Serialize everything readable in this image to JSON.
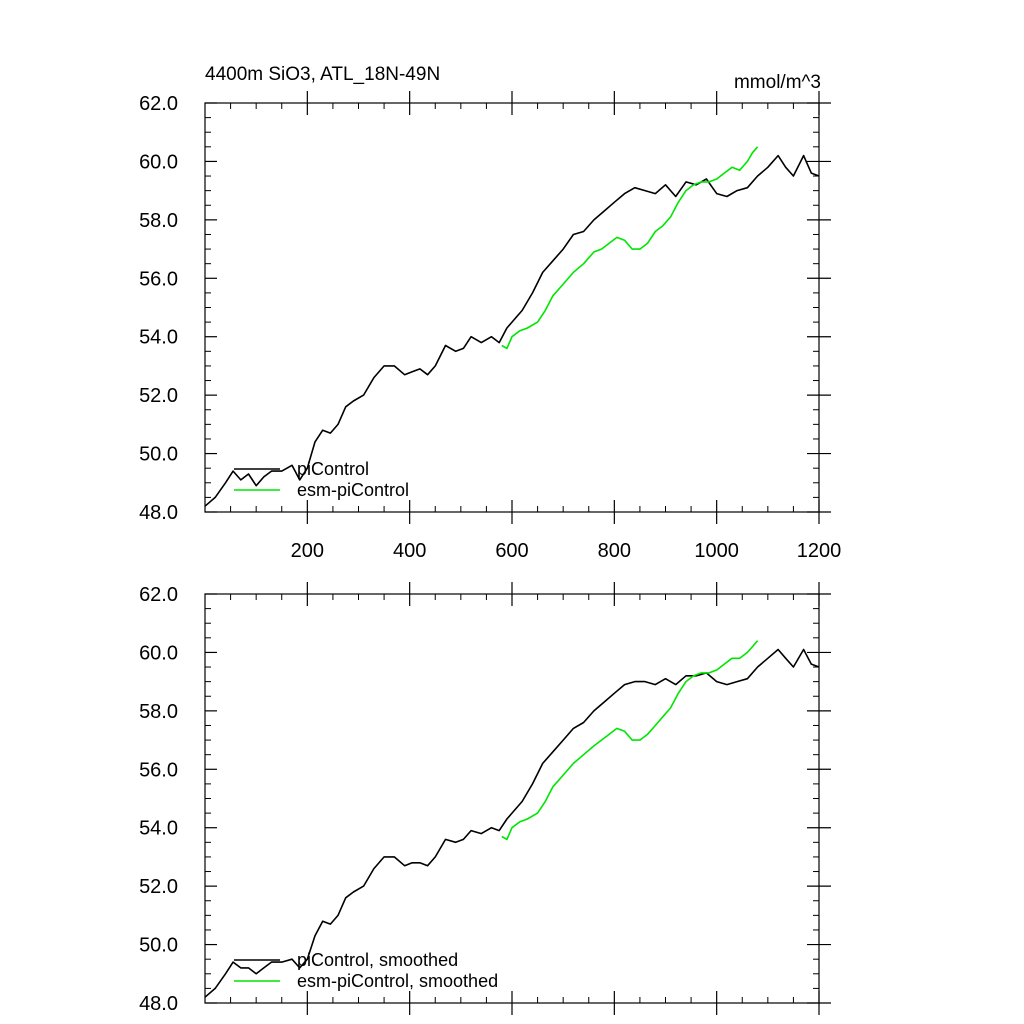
{
  "chart_data": [
    {
      "type": "line",
      "title": "4400m SiO3, ATL_18N-49N",
      "units": "mmol/m^3",
      "xlabel": "",
      "ylabel": "",
      "xlim": [
        0,
        1200
      ],
      "ylim": [
        48.0,
        62.0
      ],
      "xticks": [
        200,
        400,
        600,
        800,
        1000,
        1200
      ],
      "xtick_labels": [
        "200",
        "400",
        "600",
        "800",
        "1000",
        "1200"
      ],
      "yticks": [
        48.0,
        50.0,
        52.0,
        54.0,
        56.0,
        58.0,
        60.0,
        62.0
      ],
      "ytick_labels": [
        "48.0",
        "50.0",
        "52.0",
        "54.0",
        "56.0",
        "58.0",
        "60.0",
        "62.0"
      ],
      "legend": [
        "piControl",
        "esm-piControl"
      ],
      "legend_position": "bottom-left",
      "series": [
        {
          "name": "piControl",
          "color": "#000000",
          "x": [
            0,
            20,
            40,
            55,
            70,
            85,
            100,
            115,
            130,
            150,
            170,
            185,
            200,
            215,
            230,
            245,
            260,
            275,
            290,
            310,
            330,
            350,
            370,
            390,
            405,
            420,
            435,
            450,
            470,
            490,
            505,
            520,
            540,
            560,
            575,
            590,
            600,
            620,
            640,
            660,
            680,
            700,
            720,
            740,
            760,
            780,
            800,
            820,
            840,
            860,
            880,
            900,
            920,
            940,
            960,
            980,
            1000,
            1020,
            1040,
            1060,
            1080,
            1100,
            1120,
            1135,
            1150,
            1170,
            1185,
            1200
          ],
          "y": [
            48.2,
            48.5,
            49.0,
            49.4,
            49.1,
            49.3,
            48.9,
            49.2,
            49.4,
            49.4,
            49.6,
            49.1,
            49.5,
            50.4,
            50.8,
            50.7,
            51.0,
            51.6,
            51.8,
            52.0,
            52.6,
            53.0,
            53.0,
            52.7,
            52.8,
            52.9,
            52.7,
            53.0,
            53.7,
            53.5,
            53.6,
            54.0,
            53.8,
            54.0,
            53.8,
            54.3,
            54.5,
            54.9,
            55.5,
            56.2,
            56.6,
            57.0,
            57.5,
            57.6,
            58.0,
            58.3,
            58.6,
            58.9,
            59.1,
            59.0,
            58.9,
            59.2,
            58.8,
            59.3,
            59.2,
            59.4,
            58.9,
            58.8,
            59.0,
            59.1,
            59.5,
            59.8,
            60.2,
            59.8,
            59.5,
            60.2,
            59.6,
            59.5
          ]
        },
        {
          "name": "esm-piControl",
          "color": "#00e600",
          "x": [
            580,
            590,
            600,
            615,
            630,
            650,
            665,
            680,
            700,
            720,
            740,
            760,
            775,
            790,
            805,
            820,
            835,
            850,
            865,
            880,
            895,
            910,
            925,
            940,
            955,
            970,
            985,
            1000,
            1015,
            1030,
            1045,
            1060,
            1070,
            1080
          ],
          "y": [
            53.7,
            53.6,
            54.0,
            54.2,
            54.3,
            54.5,
            54.9,
            55.4,
            55.8,
            56.2,
            56.5,
            56.9,
            57.0,
            57.2,
            57.4,
            57.3,
            57.0,
            57.0,
            57.2,
            57.6,
            57.8,
            58.1,
            58.6,
            59.0,
            59.2,
            59.3,
            59.3,
            59.4,
            59.6,
            59.8,
            59.7,
            60.0,
            60.3,
            60.5
          ]
        }
      ]
    },
    {
      "type": "line",
      "title": "",
      "units": "",
      "xlabel": "",
      "ylabel": "",
      "xlim": [
        0,
        1200
      ],
      "ylim": [
        48.0,
        62.0
      ],
      "xticks": [
        200,
        400,
        600,
        800,
        1000,
        1200
      ],
      "xtick_labels": [],
      "yticks": [
        48.0,
        50.0,
        52.0,
        54.0,
        56.0,
        58.0,
        60.0,
        62.0
      ],
      "ytick_labels": [
        "48.0",
        "50.0",
        "52.0",
        "54.0",
        "56.0",
        "58.0",
        "60.0",
        "62.0"
      ],
      "legend": [
        "piControl, smoothed",
        "esm-piControl, smoothed"
      ],
      "legend_position": "bottom-left",
      "series": [
        {
          "name": "piControl, smoothed",
          "color": "#000000",
          "x": [
            0,
            20,
            40,
            55,
            70,
            85,
            100,
            115,
            130,
            150,
            170,
            185,
            200,
            215,
            230,
            245,
            260,
            275,
            290,
            310,
            330,
            350,
            370,
            390,
            405,
            420,
            435,
            450,
            470,
            490,
            505,
            520,
            540,
            560,
            575,
            590,
            600,
            620,
            640,
            660,
            680,
            700,
            720,
            740,
            760,
            780,
            800,
            820,
            840,
            860,
            880,
            900,
            920,
            940,
            960,
            980,
            1000,
            1020,
            1040,
            1060,
            1080,
            1100,
            1120,
            1135,
            1150,
            1170,
            1185,
            1200
          ],
          "y": [
            48.2,
            48.5,
            49.0,
            49.4,
            49.2,
            49.2,
            49.0,
            49.2,
            49.4,
            49.4,
            49.5,
            49.2,
            49.5,
            50.3,
            50.8,
            50.7,
            51.0,
            51.6,
            51.8,
            52.0,
            52.6,
            53.0,
            53.0,
            52.7,
            52.8,
            52.8,
            52.7,
            53.0,
            53.6,
            53.5,
            53.6,
            53.9,
            53.8,
            54.0,
            53.9,
            54.3,
            54.5,
            54.9,
            55.5,
            56.2,
            56.6,
            57.0,
            57.4,
            57.6,
            58.0,
            58.3,
            58.6,
            58.9,
            59.0,
            59.0,
            58.9,
            59.1,
            58.9,
            59.2,
            59.2,
            59.3,
            59.0,
            58.9,
            59.0,
            59.1,
            59.5,
            59.8,
            60.1,
            59.8,
            59.5,
            60.1,
            59.6,
            59.5
          ]
        },
        {
          "name": "esm-piControl, smoothed",
          "color": "#00e600",
          "x": [
            580,
            590,
            600,
            615,
            630,
            650,
            665,
            680,
            700,
            720,
            740,
            760,
            775,
            790,
            805,
            820,
            835,
            850,
            865,
            880,
            895,
            910,
            925,
            940,
            955,
            970,
            985,
            1000,
            1015,
            1030,
            1045,
            1060,
            1070,
            1080
          ],
          "y": [
            53.7,
            53.6,
            54.0,
            54.2,
            54.3,
            54.5,
            54.9,
            55.4,
            55.8,
            56.2,
            56.5,
            56.8,
            57.0,
            57.2,
            57.4,
            57.3,
            57.0,
            57.0,
            57.2,
            57.5,
            57.8,
            58.1,
            58.6,
            59.0,
            59.2,
            59.3,
            59.3,
            59.4,
            59.6,
            59.8,
            59.8,
            60.0,
            60.2,
            60.4
          ]
        }
      ]
    }
  ]
}
